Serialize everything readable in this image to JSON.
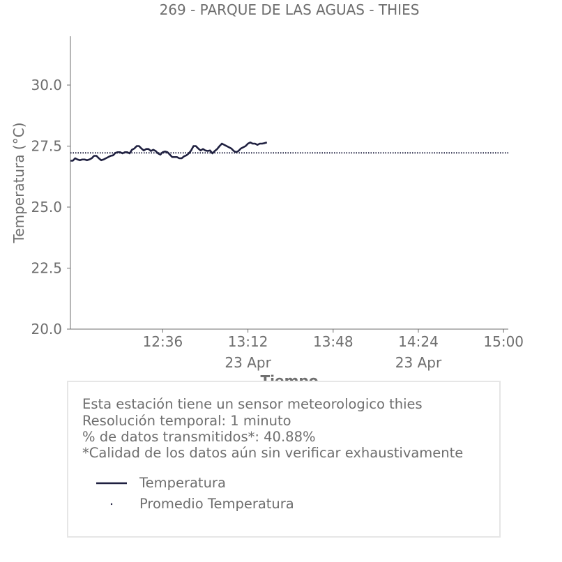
{
  "chart_data": {
    "type": "line",
    "title": "269 - PARQUE DE LAS AGUAS - THIES",
    "xlabel": "Tiempo",
    "ylabel": "Temperatura (°C)",
    "ylim": [
      20.0,
      32.0
    ],
    "xlim": [
      "11:57",
      "15:02"
    ],
    "y_ticks": [
      "20.0",
      "22.5",
      "25.0",
      "27.5",
      "30.0"
    ],
    "x_ticks": [
      {
        "time": "12:36",
        "label": "12:36",
        "sublabel": ""
      },
      {
        "time": "13:12",
        "label": "13:12",
        "sublabel": "23 Apr"
      },
      {
        "time": "13:48",
        "label": "13:48",
        "sublabel": ""
      },
      {
        "time": "14:24",
        "label": "14:24",
        "sublabel": "23 Apr"
      },
      {
        "time": "15:00",
        "label": "15:00",
        "sublabel": ""
      }
    ],
    "grid": false,
    "series": [
      {
        "name": "Temperatura",
        "color": "#1f2040",
        "style": "solid",
        "x": [
          "11:57",
          "11:58",
          "11:59",
          "12:00",
          "12:01",
          "12:02",
          "12:03",
          "12:04",
          "12:05",
          "12:06",
          "12:07",
          "12:08",
          "12:09",
          "12:10",
          "12:11",
          "12:12",
          "12:13",
          "12:14",
          "12:15",
          "12:16",
          "12:17",
          "12:18",
          "12:19",
          "12:20",
          "12:21",
          "12:22",
          "12:23",
          "12:24",
          "12:25",
          "12:26",
          "12:27",
          "12:28",
          "12:29",
          "12:30",
          "12:31",
          "12:32",
          "12:33",
          "12:34",
          "12:35",
          "12:36",
          "12:37",
          "12:38",
          "12:39",
          "12:40",
          "12:41",
          "12:42",
          "12:43",
          "12:44",
          "12:45",
          "12:46",
          "12:47",
          "12:48",
          "12:49",
          "12:50",
          "12:51",
          "12:52",
          "12:53",
          "12:54",
          "12:55",
          "12:56",
          "12:57",
          "12:58",
          "12:59",
          "13:00",
          "13:01",
          "13:02",
          "13:03",
          "13:04",
          "13:05",
          "13:06",
          "13:07",
          "13:08",
          "13:09",
          "13:10",
          "13:11",
          "13:12",
          "13:13",
          "13:14",
          "13:15",
          "13:16",
          "13:17",
          "13:18",
          "13:19",
          "13:20"
        ],
        "values": [
          26.9,
          26.9,
          27.0,
          26.95,
          26.92,
          26.95,
          26.95,
          26.92,
          26.95,
          27.0,
          27.1,
          27.1,
          27.0,
          26.92,
          26.95,
          27.0,
          27.05,
          27.1,
          27.12,
          27.22,
          27.25,
          27.25,
          27.2,
          27.25,
          27.25,
          27.2,
          27.35,
          27.4,
          27.5,
          27.5,
          27.4,
          27.32,
          27.38,
          27.38,
          27.3,
          27.35,
          27.3,
          27.2,
          27.15,
          27.25,
          27.28,
          27.25,
          27.15,
          27.05,
          27.05,
          27.05,
          27.0,
          27.0,
          27.08,
          27.12,
          27.2,
          27.32,
          27.5,
          27.5,
          27.4,
          27.32,
          27.38,
          27.32,
          27.3,
          27.32,
          27.2,
          27.3,
          27.38,
          27.5,
          27.6,
          27.55,
          27.5,
          27.45,
          27.4,
          27.3,
          27.25,
          27.3,
          27.4,
          27.45,
          27.5,
          27.6,
          27.65,
          27.6,
          27.6,
          27.55,
          27.6,
          27.6,
          27.62,
          27.65
        ]
      },
      {
        "name": "Promedio Temperatura",
        "color": "#1f2040",
        "style": "dotted",
        "value": 27.22
      }
    ],
    "legend": {
      "placement": "bottom-box",
      "items": [
        "Temperatura",
        "Promedio Temperatura"
      ]
    }
  },
  "info": {
    "line1": "Esta estación tiene un sensor meteorologico thies",
    "line2": "Resolución temporal: 1 minuto",
    "line3": "% de datos transmitidos*: 40.88%",
    "line4": "*Calidad de los datos aún sin verificar exhaustivamente"
  }
}
